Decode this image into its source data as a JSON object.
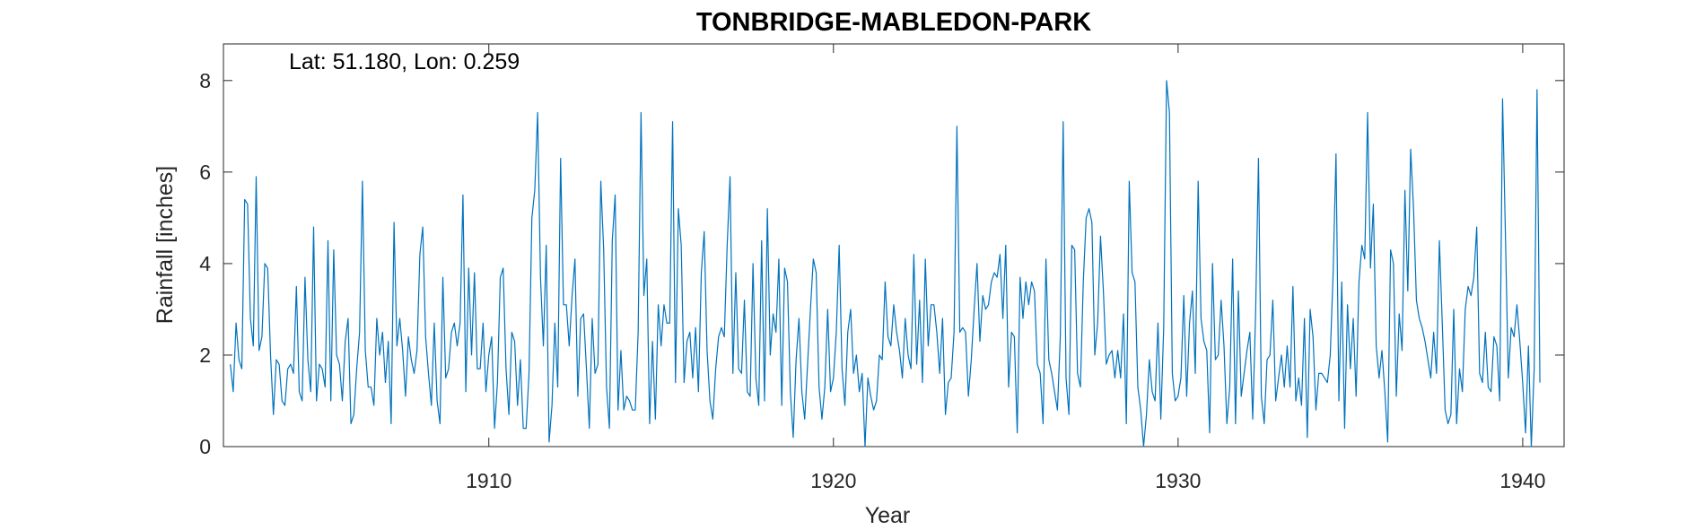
{
  "chart_data": {
    "type": "line",
    "title": "TONBRIDGE-MABLEDON-PARK",
    "xlabel": "Year",
    "ylabel": "Rainfall [inches]",
    "annotation": "Lat: 51.180, Lon: 0.259",
    "xlim": [
      1902.3,
      1941.2
    ],
    "ylim": [
      0,
      8.8
    ],
    "xticks": [
      1910,
      1920,
      1930,
      1940
    ],
    "yticks": [
      0,
      2,
      4,
      6,
      8
    ],
    "grid": false,
    "line_color": "#0072bd",
    "x_start": 1902.5,
    "x_step": 0.08333,
    "series": [
      {
        "values": [
          1.8,
          1.2,
          2.7,
          1.9,
          1.7,
          5.4,
          5.3,
          2.8,
          2.2,
          5.9,
          2.1,
          2.4,
          4.0,
          3.9,
          2.0,
          0.7,
          1.9,
          1.8,
          1.0,
          0.9,
          1.7,
          1.8,
          1.6,
          3.5,
          1.2,
          1.0,
          3.7,
          1.9,
          1.2,
          4.8,
          1.0,
          1.8,
          1.7,
          1.3,
          4.5,
          1.0,
          4.3,
          2.0,
          1.8,
          1.0,
          2.3,
          2.8,
          0.5,
          0.7,
          1.7,
          2.5,
          5.8,
          2.1,
          1.3,
          1.3,
          0.9,
          2.8,
          2.0,
          2.5,
          1.4,
          2.3,
          0.5,
          4.9,
          2.2,
          2.8,
          2.1,
          1.1,
          2.4,
          1.9,
          1.6,
          2.1,
          4.2,
          4.8,
          2.4,
          1.6,
          0.9,
          2.7,
          1.0,
          0.5,
          3.7,
          1.5,
          1.7,
          2.5,
          2.7,
          2.2,
          2.7,
          5.5,
          1.2,
          3.9,
          2.0,
          3.8,
          1.7,
          1.7,
          2.7,
          1.2,
          2.0,
          2.4,
          0.4,
          1.4,
          3.7,
          3.9,
          1.7,
          0.7,
          2.5,
          2.3,
          0.9,
          1.9,
          0.4,
          0.4,
          1.6,
          5.0,
          5.6,
          7.3,
          3.7,
          2.2,
          4.4,
          0.1,
          0.9,
          2.7,
          1.3,
          6.3,
          3.1,
          3.1,
          2.2,
          3.3,
          4.1,
          1.1,
          2.8,
          2.9,
          1.7,
          0.4,
          2.8,
          1.6,
          1.8,
          5.8,
          4.3,
          1.3,
          0.4,
          4.5,
          5.5,
          0.8,
          2.1,
          0.8,
          1.1,
          1.0,
          0.8,
          0.8,
          2.5,
          7.3,
          3.3,
          4.1,
          0.5,
          2.3,
          0.6,
          3.1,
          2.2,
          3.1,
          2.7,
          2.7,
          7.1,
          1.4,
          5.2,
          4.4,
          1.4,
          2.3,
          2.5,
          1.5,
          2.6,
          1.2,
          3.8,
          4.7,
          2.1,
          1.0,
          0.6,
          1.7,
          2.4,
          2.6,
          2.4,
          4.4,
          5.9,
          1.6,
          3.8,
          1.7,
          1.6,
          3.2,
          1.2,
          1.1,
          4.0,
          1.5,
          0.9,
          4.5,
          1.0,
          5.2,
          2.0,
          2.9,
          2.5,
          4.1,
          0.9,
          3.9,
          3.6,
          1.2,
          0.2,
          1.9,
          2.8,
          1.2,
          0.6,
          1.8,
          3.0,
          4.1,
          3.8,
          1.3,
          0.6,
          1.3,
          3.0,
          1.2,
          1.5,
          2.5,
          4.4,
          1.7,
          0.9,
          2.5,
          3.0,
          1.6,
          2.0,
          1.2,
          1.6,
          0.0,
          1.5,
          1.1,
          0.8,
          1.0,
          2.0,
          1.9,
          3.6,
          2.4,
          2.2,
          3.1,
          2.5,
          2.1,
          1.5,
          2.8,
          2.0,
          1.7,
          4.2,
          1.8,
          3.2,
          1.4,
          4.1,
          2.2,
          3.1,
          3.1,
          2.5,
          1.6,
          2.8,
          0.7,
          1.4,
          1.5,
          2.5,
          7.0,
          2.5,
          2.6,
          2.5,
          1.1,
          1.9,
          3.0,
          4.0,
          2.3,
          3.3,
          3.0,
          3.1,
          3.6,
          3.8,
          3.7,
          4.2,
          2.8,
          4.4,
          1.3,
          2.5,
          2.4,
          0.3,
          3.7,
          2.8,
          3.6,
          3.1,
          3.6,
          3.4,
          1.8,
          1.6,
          0.5,
          4.1,
          1.9,
          1.6,
          1.2,
          0.8,
          2.4,
          7.1,
          1.5,
          0.7,
          4.4,
          4.3,
          1.6,
          1.3,
          3.6,
          5.0,
          5.2,
          4.9,
          2.0,
          2.7,
          4.6,
          3.4,
          1.8,
          2.0,
          2.1,
          1.5,
          2.1,
          1.5,
          2.9,
          0.5,
          5.8,
          3.8,
          3.6,
          1.3,
          0.8,
          0.0,
          0.7,
          1.9,
          1.2,
          1.0,
          2.7,
          0.6,
          2.6,
          8.0,
          7.3,
          1.6,
          1.0,
          1.1,
          1.5,
          3.3,
          1.1,
          2.7,
          3.4,
          1.6,
          5.8,
          2.8,
          2.3,
          2.1,
          0.3,
          4.0,
          1.9,
          2.0,
          3.2,
          2.2,
          0.5,
          1.3,
          4.1,
          0.5,
          3.4,
          1.1,
          1.6,
          2.1,
          2.5,
          0.6,
          2.9,
          6.3,
          1.1,
          0.5,
          1.9,
          2.0,
          3.2,
          1.0,
          1.5,
          2.0,
          1.3,
          2.2,
          1.3,
          3.5,
          1.0,
          1.5,
          0.9,
          2.8,
          0.2,
          3.0,
          2.4,
          0.8,
          1.6,
          1.6,
          1.5,
          1.4,
          2.0,
          3.8,
          6.4,
          1.0,
          3.6,
          0.4,
          3.1,
          1.7,
          2.8,
          1.1,
          3.6,
          4.4,
          4.1,
          7.3,
          3.9,
          5.3,
          2.2,
          1.5,
          2.1,
          1.2,
          0.1,
          4.3,
          4.0,
          1.1,
          2.9,
          2.1,
          5.6,
          3.4,
          6.5,
          5.2,
          3.2,
          2.8,
          2.6,
          2.3,
          1.9,
          1.5,
          2.5,
          1.6,
          4.5,
          2.7,
          0.8,
          0.5,
          0.7,
          3.0,
          0.5,
          1.7,
          1.2,
          3.0,
          3.5,
          3.3,
          3.7,
          4.8,
          1.6,
          1.4,
          2.5,
          1.3,
          1.2,
          2.4,
          2.2,
          1.0,
          7.6,
          4.6,
          1.5,
          2.6,
          2.4,
          3.1,
          2.3,
          1.4,
          0.3,
          2.2,
          0.0,
          1.7,
          7.8,
          1.4
        ]
      }
    ]
  }
}
